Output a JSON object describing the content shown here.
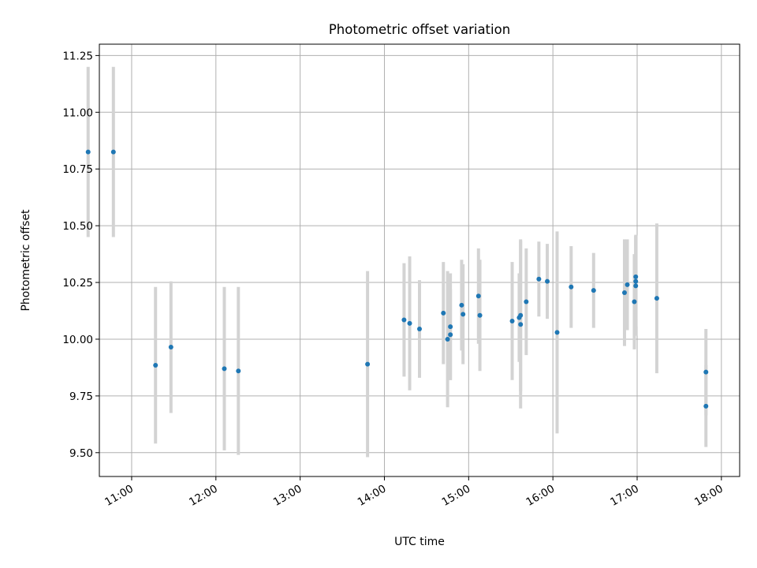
{
  "chart_data": {
    "type": "scatter",
    "title": "Photometric offset variation",
    "xlabel": "UTC time",
    "ylabel": "Photometric offset",
    "xlim": [
      "10:37",
      "18:13"
    ],
    "ylim": [
      9.395,
      11.3
    ],
    "x_ticks": [
      "11:00",
      "12:00",
      "13:00",
      "14:00",
      "15:00",
      "16:00",
      "17:00",
      "18:00"
    ],
    "y_ticks": [
      9.5,
      9.75,
      10.0,
      10.25,
      10.5,
      10.75,
      11.0,
      11.25
    ],
    "grid": true,
    "legend": "none",
    "marker_color": "#1f77b4",
    "errorbar_color": "#d3d3d3",
    "points": [
      {
        "t": "10:29",
        "y": 10.825,
        "err": 0.375
      },
      {
        "t": "10:47",
        "y": 10.825,
        "err": 0.375
      },
      {
        "t": "11:17",
        "y": 9.885,
        "err": 0.345
      },
      {
        "t": "11:28",
        "y": 9.965,
        "err": 0.29
      },
      {
        "t": "12:06",
        "y": 9.87,
        "err": 0.36
      },
      {
        "t": "12:16",
        "y": 9.86,
        "err": 0.37
      },
      {
        "t": "13:48",
        "y": 9.89,
        "err": 0.41
      },
      {
        "t": "14:14",
        "y": 10.085,
        "err": 0.25
      },
      {
        "t": "14:18",
        "y": 10.07,
        "err": 0.295
      },
      {
        "t": "14:25",
        "y": 10.045,
        "err": 0.215
      },
      {
        "t": "14:42",
        "y": 10.115,
        "err": 0.225
      },
      {
        "t": "14:45",
        "y": 10.0,
        "err": 0.3
      },
      {
        "t": "14:47",
        "y": 10.055,
        "err": 0.235
      },
      {
        "t": "14:47",
        "y": 10.02,
        "err": 0.2
      },
      {
        "t": "14:55",
        "y": 10.15,
        "err": 0.2
      },
      {
        "t": "14:56",
        "y": 10.11,
        "err": 0.22
      },
      {
        "t": "15:07",
        "y": 10.19,
        "err": 0.21
      },
      {
        "t": "15:08",
        "y": 10.105,
        "err": 0.245
      },
      {
        "t": "15:31",
        "y": 10.08,
        "err": 0.26
      },
      {
        "t": "15:36",
        "y": 10.095,
        "err": 0.195
      },
      {
        "t": "15:37",
        "y": 10.105,
        "err": 0.335
      },
      {
        "t": "15:37",
        "y": 10.065,
        "err": 0.37
      },
      {
        "t": "15:41",
        "y": 10.165,
        "err": 0.235
      },
      {
        "t": "15:50",
        "y": 10.265,
        "err": 0.165
      },
      {
        "t": "15:56",
        "y": 10.255,
        "err": 0.165
      },
      {
        "t": "16:03",
        "y": 10.03,
        "err": 0.445
      },
      {
        "t": "16:13",
        "y": 10.23,
        "err": 0.18
      },
      {
        "t": "16:29",
        "y": 10.215,
        "err": 0.165
      },
      {
        "t": "16:51",
        "y": 10.205,
        "err": 0.235
      },
      {
        "t": "16:53",
        "y": 10.24,
        "err": 0.2
      },
      {
        "t": "16:58",
        "y": 10.165,
        "err": 0.21
      },
      {
        "t": "16:59",
        "y": 10.275,
        "err": 0.185
      },
      {
        "t": "16:59",
        "y": 10.255,
        "err": 0.2
      },
      {
        "t": "16:59",
        "y": 10.235,
        "err": 0.22
      },
      {
        "t": "17:14",
        "y": 10.18,
        "err": 0.33
      },
      {
        "t": "17:49",
        "y": 9.855,
        "err": 0.19
      },
      {
        "t": "17:49",
        "y": 9.705,
        "err": 0.18
      }
    ]
  }
}
